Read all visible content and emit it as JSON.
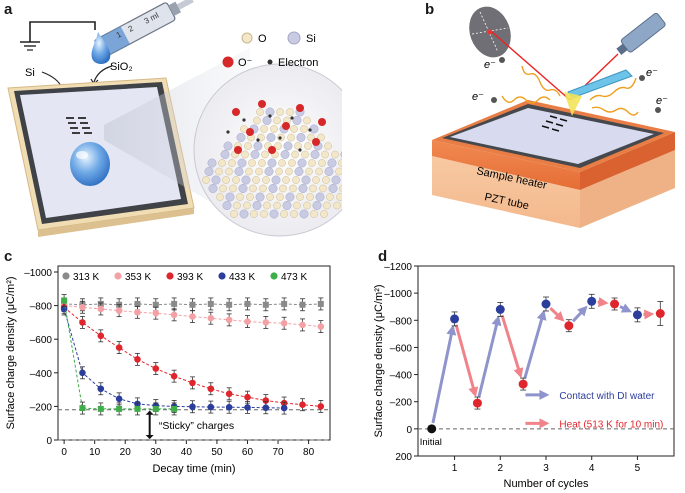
{
  "panels": {
    "a": {
      "letter": "a",
      "labels": {
        "si": "Si",
        "sio2": "SiO₂",
        "syringe_ml": "3 ml",
        "syringe_ticks": [
          "1",
          "2"
        ]
      },
      "legend": {
        "o": "O",
        "si": "Si",
        "o_minus": "O⁻",
        "electron": "Electron"
      },
      "colors": {
        "o": "#f3e7c9",
        "si": "#c9cbe3",
        "o_minus": "#d62828",
        "electron": "#333333"
      }
    },
    "b": {
      "letter": "b",
      "labels": {
        "electron": "e⁻",
        "sample_heater": "Sample heater",
        "pzt_tube": "PZT tube"
      }
    },
    "c": {
      "letter": "c",
      "sticky_label": "“Sticky” charges",
      "chart_data": {
        "type": "scatter",
        "xlabel": "Decay time (min)",
        "ylabel": "Surface charge density (μC/m²)",
        "xlim": [
          -2,
          87
        ],
        "ylim": [
          0,
          -1000
        ],
        "xticks": [
          "0",
          "10",
          "20",
          "30",
          "40",
          "50",
          "60",
          "70",
          "80"
        ],
        "yticks": [
          "0",
          "–200",
          "–400",
          "–600",
          "–800",
          "–1000"
        ],
        "series": [
          {
            "name": "313 K",
            "color": "#8a8a8a",
            "x": [
              0,
              6,
              12,
              18,
              24,
              30,
              36,
              42,
              48,
              54,
              60,
              66,
              72,
              78,
              84
            ],
            "y": [
              -810,
              -805,
              -810,
              -805,
              -810,
              -805,
              -810,
              -805,
              -810,
              -805,
              -810,
              -805,
              -810,
              -805,
              -810
            ]
          },
          {
            "name": "353 K",
            "color": "#f4a1a6",
            "x": [
              0,
              6,
              12,
              18,
              24,
              30,
              36,
              42,
              48,
              54,
              60,
              66,
              72,
              78,
              84
            ],
            "y": [
              -800,
              -790,
              -780,
              -770,
              -760,
              -755,
              -745,
              -735,
              -725,
              -715,
              -705,
              -700,
              -695,
              -685,
              -675
            ]
          },
          {
            "name": "393 K",
            "color": "#e0262d",
            "x": [
              0,
              6,
              12,
              18,
              24,
              30,
              36,
              42,
              48,
              54,
              60,
              66,
              72,
              78,
              84
            ],
            "y": [
              -790,
              -700,
              -620,
              -550,
              -480,
              -425,
              -380,
              -340,
              -305,
              -275,
              -255,
              -235,
              -220,
              -210,
              -200
            ]
          },
          {
            "name": "433 K",
            "color": "#2c3e9c",
            "x": [
              0,
              6,
              12,
              18,
              24,
              30,
              36,
              42,
              48,
              54,
              60,
              66,
              72
            ],
            "y": [
              -780,
              -400,
              -305,
              -245,
              -215,
              -205,
              -200,
              -198,
              -196,
              -195,
              -194,
              -192,
              -190
            ]
          },
          {
            "name": "473 K",
            "color": "#3fae49",
            "x": [
              0,
              6,
              12,
              18,
              24,
              30,
              36
            ],
            "y": [
              -830,
              -190,
              -185,
              -185,
              -185,
              -185,
              -185
            ]
          }
        ]
      }
    },
    "d": {
      "letter": "d",
      "initial_label": "Initial",
      "legend": {
        "contact": "Contact with DI water",
        "heat": "Heat (513 K for 10 min)"
      },
      "chart_data": {
        "type": "scatter",
        "xlabel": "Number of cycles",
        "ylabel": "Surface charge density (μC/m²)",
        "xlim": [
          0.2,
          5.8
        ],
        "ylim": [
          200,
          -1200
        ],
        "xticks": [
          "1",
          "2",
          "3",
          "4",
          "5"
        ],
        "yticks": [
          "200",
          "0",
          "–200",
          "–400",
          "–600",
          "–800",
          "–1000",
          "–1200"
        ],
        "initial": {
          "x": 0.5,
          "y": 0
        },
        "contact": {
          "color": "#2c3e9c",
          "x": [
            1,
            2,
            3,
            4,
            5
          ],
          "y": [
            -810,
            -880,
            -920,
            -940,
            -840
          ]
        },
        "heat": {
          "color": "#e0262d",
          "x": [
            1.5,
            2.5,
            3.5,
            4.5,
            5.5
          ],
          "y": [
            -190,
            -330,
            -760,
            -920,
            -850
          ]
        },
        "arrow_colors": {
          "contact": "#8f95cc",
          "heat": "#f0838a"
        }
      }
    }
  }
}
